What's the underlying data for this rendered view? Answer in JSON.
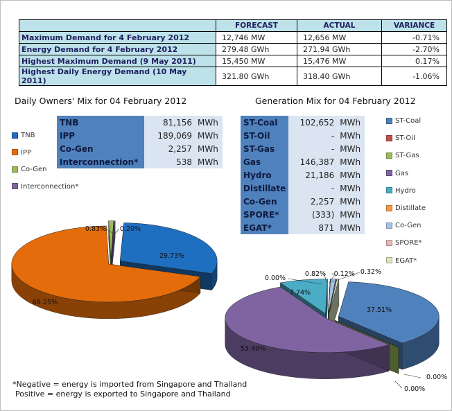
{
  "summary": {
    "headers": [
      "",
      "FORECAST",
      "ACTUAL",
      "VARIANCE"
    ],
    "rows": [
      {
        "label": "Maximum Demand for 4 February 2012",
        "forecast": "12,746  MW",
        "actual": "12,656  MW",
        "variance": "-0.71%"
      },
      {
        "label": "Energy Demand for 4 February 2012",
        "forecast": "279.48  GWh",
        "actual": "271.94  GWh",
        "variance": "-2.70%"
      },
      {
        "label": "Highest Maximum Demand (9 May 2011)",
        "forecast": "15,450  MW",
        "actual": "15,476  MW",
        "variance": "0.17%"
      },
      {
        "label": "Highest Daily Energy Demand (10 May 2011)",
        "forecast": "321.80  GWh",
        "actual": "318.40  GWh",
        "variance": "-1.06%"
      }
    ]
  },
  "owners": {
    "title": "Daily Owners' Mix for 04 February 2012",
    "rows": [
      {
        "name": "TNB",
        "value": "81,156",
        "unit": "MWh"
      },
      {
        "name": "IPP",
        "value": "189,069",
        "unit": "MWh"
      },
      {
        "name": "Co-Gen",
        "value": "2,257",
        "unit": "MWh"
      },
      {
        "name": "Interconnection*",
        "value": "538",
        "unit": "MWh"
      }
    ]
  },
  "generation": {
    "title": "Generation Mix for 04 February 2012",
    "rows": [
      {
        "name": "ST-Coal",
        "value": "102,652",
        "unit": "MWh"
      },
      {
        "name": "ST-Oil",
        "value": "-",
        "unit": "MWh"
      },
      {
        "name": "ST-Gas",
        "value": "-",
        "unit": "MWh"
      },
      {
        "name": "Gas",
        "value": "146,387",
        "unit": "MWh"
      },
      {
        "name": "Hydro",
        "value": "21,186",
        "unit": "MWh"
      },
      {
        "name": "Distillate",
        "value": "-",
        "unit": "MWh"
      },
      {
        "name": "Co-Gen",
        "value": "2,257",
        "unit": "MWh"
      },
      {
        "name": "SPORE*",
        "value": "(333)",
        "unit": "MWh"
      },
      {
        "name": "EGAT*",
        "value": "871",
        "unit": "MWh"
      }
    ]
  },
  "chart_data": [
    {
      "type": "pie",
      "categories": [
        "TNB",
        "IPP",
        "Co-Gen",
        "Interconnection*"
      ],
      "values": [
        29.73,
        69.25,
        0.83,
        0.2
      ],
      "labels": [
        "29.73%",
        "69.25%",
        "0.83%",
        "0.20%"
      ],
      "colors": [
        "#1f6fc0",
        "#e46c0a",
        "#9bbb59",
        "#8064a2"
      ],
      "legend": "left"
    },
    {
      "type": "pie",
      "categories": [
        "ST-Coal",
        "ST-Oil",
        "ST-Gas",
        "Gas",
        "Hydro",
        "Distillate",
        "Co-Gen",
        "SPORE*",
        "EGAT*"
      ],
      "values": [
        37.51,
        0.0,
        0.0,
        53.49,
        7.74,
        0.0,
        0.82,
        -0.12,
        0.32
      ],
      "labels": [
        "37.51%",
        "0.00%",
        "0.00%",
        "53.49%",
        "7.74%",
        "0.00%",
        "0.82%",
        "-0.12%",
        "0.32%"
      ],
      "colors": [
        "#4f81bd",
        "#c0504d",
        "#9bbb59",
        "#8064a2",
        "#4bacc6",
        "#f79646",
        "#a3c4e8",
        "#e6b9b8",
        "#d7e4bd"
      ],
      "legend": "right"
    }
  ],
  "note": {
    "line1": "*Negative = energy is imported from Singapore and Thailand",
    "line2": "Positive = energy is exported to Singapore and Thailand"
  }
}
